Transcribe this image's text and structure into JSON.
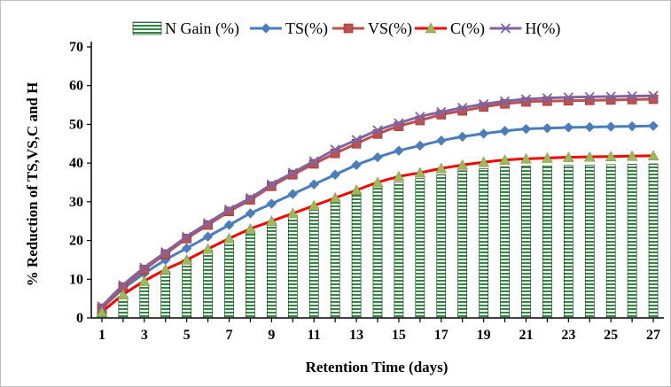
{
  "chart_data": {
    "type": "bar",
    "title": "",
    "xlabel": "Retention Time (days)",
    "ylabel": "% Reduction  of TS,VS,C and H",
    "ylim": [
      0,
      70
    ],
    "yticks": [
      0,
      10,
      20,
      30,
      40,
      50,
      60,
      70
    ],
    "x": [
      1,
      2,
      3,
      4,
      5,
      6,
      7,
      8,
      9,
      10,
      11,
      12,
      13,
      14,
      15,
      16,
      17,
      18,
      19,
      20,
      21,
      22,
      23,
      24,
      25,
      26,
      27
    ],
    "xtick_labels": [
      "1",
      "3",
      "5",
      "7",
      "9",
      "11",
      "13",
      "15",
      "17",
      "19",
      "21",
      "23",
      "25",
      "27"
    ],
    "legend_position": "top",
    "series": [
      {
        "name": "N Gain (%)",
        "kind": "bar",
        "color": "#2e8b3c",
        "values": [
          1.5,
          5.5,
          8.5,
          12,
          15,
          17.5,
          20,
          22.5,
          24.5,
          26.5,
          28.5,
          30.5,
          32.5,
          34,
          35,
          36,
          37,
          38,
          38.5,
          39,
          39.2,
          39.3,
          39.4,
          39.5,
          39.6,
          39.7,
          39.8
        ]
      },
      {
        "name": "TS(%)",
        "kind": "line",
        "color": "#4a7ebb",
        "marker": "diamond",
        "values": [
          2.5,
          7.5,
          11.5,
          15,
          18,
          21,
          24,
          27,
          29.5,
          32,
          34.5,
          37,
          39.5,
          41.5,
          43.2,
          44.5,
          45.8,
          46.8,
          47.6,
          48.3,
          48.8,
          49,
          49.2,
          49.3,
          49.4,
          49.5,
          49.6
        ]
      },
      {
        "name": "VS(%)",
        "kind": "line",
        "color": "#c0504d",
        "marker": "square",
        "values": [
          2.5,
          8,
          12.5,
          16.5,
          20.5,
          24,
          27.5,
          30.5,
          34,
          37,
          39.8,
          42.5,
          45,
          47.5,
          49.5,
          51,
          52.5,
          53.5,
          54.5,
          55.3,
          55.8,
          56,
          56.1,
          56.2,
          56.3,
          56.4,
          56.5
        ]
      },
      {
        "name": "C(%)",
        "kind": "line",
        "color": "#ff0000",
        "marker": "triangle",
        "marker_color": "#9bbb59",
        "values": [
          1.5,
          6,
          9.5,
          12.5,
          15,
          17.8,
          20.5,
          23,
          25,
          27,
          29,
          31,
          33,
          35,
          36.5,
          37.5,
          38.6,
          39.5,
          40.2,
          40.8,
          41.1,
          41.3,
          41.5,
          41.6,
          41.7,
          41.8,
          41.9
        ]
      },
      {
        "name": "H(%)",
        "kind": "line",
        "color": "#8064a2",
        "marker": "x",
        "values": [
          3,
          8.5,
          13,
          17,
          21,
          24.5,
          28,
          31,
          34.5,
          37.5,
          40.5,
          43.5,
          46,
          48.5,
          50.3,
          52,
          53.2,
          54.3,
          55.2,
          56,
          56.5,
          56.8,
          57,
          57.1,
          57.2,
          57.3,
          57.4
        ]
      }
    ]
  }
}
